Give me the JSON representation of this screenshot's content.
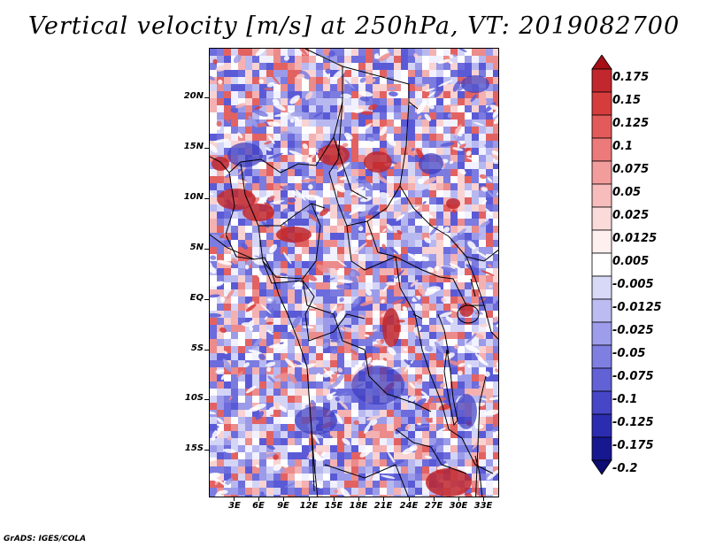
{
  "title": "Vertical velocity [m/s] at 250hPa, VT: 2019082700",
  "credit": "GrADS: IGES/COLA",
  "map": {
    "region": "Central Africa",
    "lat_labels": [
      "20N",
      "15N",
      "10N",
      "5N",
      "EQ",
      "5S",
      "10S",
      "15S"
    ],
    "lon_labels": [
      "3E",
      "6E",
      "9E",
      "12E",
      "15E",
      "18E",
      "21E",
      "24E",
      "27E",
      "30E",
      "33E"
    ]
  },
  "colorbar": {
    "labels": [
      "0.175",
      "0.15",
      "0.125",
      "0.1",
      "0.075",
      "0.05",
      "0.025",
      "0.0125",
      "0.005",
      "-0.005",
      "-0.0125",
      "-0.025",
      "-0.05",
      "-0.075",
      "-0.1",
      "-0.125",
      "-0.175",
      "-0.2"
    ],
    "colors": [
      "#a50f15",
      "#c1272d",
      "#d73c3c",
      "#e35a5a",
      "#ec7a7a",
      "#f29c9c",
      "#f7bcbc",
      "#fbdada",
      "#fff0f0",
      "#ffffff",
      "#d8d8f7",
      "#bcbcf2",
      "#9d9deb",
      "#7f7fe2",
      "#6262d6",
      "#4646c6",
      "#2c2cb0",
      "#17178f",
      "#0c0c72"
    ]
  }
}
